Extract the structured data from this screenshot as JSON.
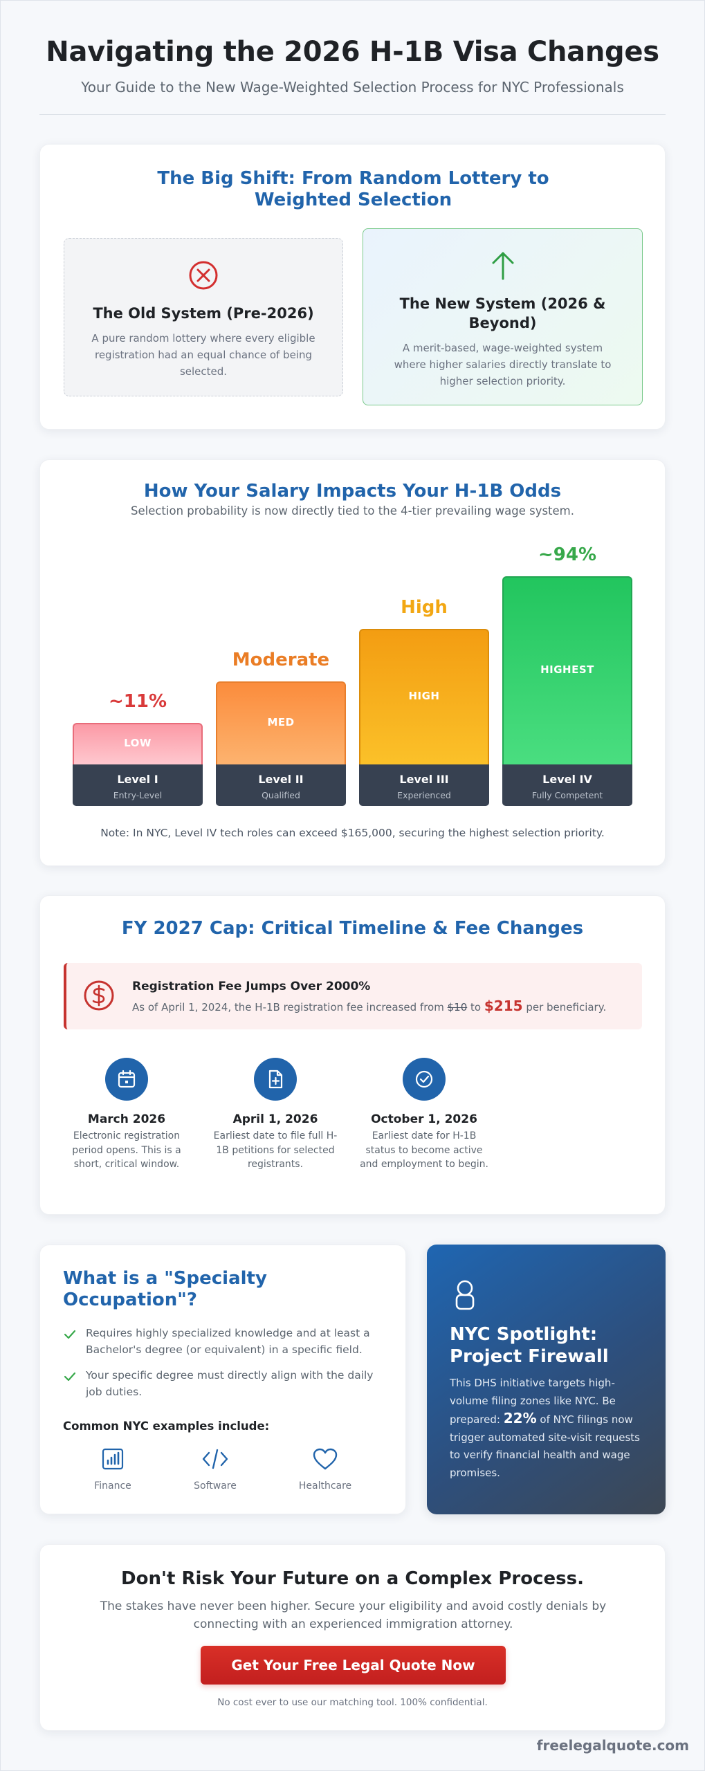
{
  "header": {
    "title": "Navigating the 2026 H-1B Visa Changes",
    "subtitle": "Your Guide to the New Wage-Weighted Selection Process for NYC Professionals"
  },
  "shift": {
    "title": "The Big Shift: From Random Lottery to Weighted Selection",
    "old": {
      "icon": "x-circle-icon",
      "title": "The Old System (Pre-2026)",
      "text": "A pure random lottery where every eligible registration had an equal chance of being selected."
    },
    "new": {
      "icon": "arrow-up-icon",
      "title": "The New System (2026 & Beyond)",
      "text": "A merit-based, wage-weighted system where higher salaries directly translate to higher selection priority."
    }
  },
  "salary": {
    "title": "How Your Salary Impacts Your H-1B Odds",
    "subtitle": "Selection probability is now directly tied to the 4-tier prevailing wage system.",
    "levels": [
      {
        "odds": "~11%",
        "tag": "LOW",
        "level": "Level I",
        "desc": "Entry-Level",
        "color": "#d93a3a",
        "height": 0.22
      },
      {
        "odds": "Moderate",
        "tag": "MED",
        "level": "Level II",
        "desc": "Qualified",
        "color": "#ea7d25",
        "height": 0.44
      },
      {
        "odds": "High",
        "tag": "HIGH",
        "level": "Level III",
        "desc": "Experienced",
        "color": "#f2a713",
        "height": 0.72
      },
      {
        "odds": "~94%",
        "tag": "HIGHEST",
        "level": "Level IV",
        "desc": "Fully Competent",
        "color": "#37a84a",
        "height": 1.0
      }
    ],
    "note": "Note: In NYC, Level IV tech roles can exceed $165,000, securing the highest selection priority."
  },
  "timeline": {
    "title": "FY 2027 Cap: Critical Timeline & Fee Changes",
    "fee": {
      "icon": "dollar-circle-icon",
      "title": "Registration Fee Jumps Over 2000%",
      "text_before": "As of April 1, 2024, the H-1B registration fee increased from",
      "old_fee": "$10",
      "text_mid": "to",
      "new_fee": "$215",
      "text_after": "per beneficiary."
    },
    "items": [
      {
        "icon": "calendar-icon",
        "date": "March 2026",
        "desc": "Electronic registration period opens. This is a short, critical window."
      },
      {
        "icon": "file-plus-icon",
        "date": "April 1, 2026",
        "desc": "Earliest date to file full H-1B petitions for selected registrants."
      },
      {
        "icon": "check-circle-icon",
        "date": "October 1, 2026",
        "desc": "Earliest date for H-1B status to become active and employment to begin."
      }
    ]
  },
  "specialty": {
    "title": "What is a \"Specialty Occupation\"?",
    "requirements": [
      "Requires highly specialized knowledge and at least a Bachelor's degree (or equivalent) in a specific field.",
      "Your specific degree must directly align with the daily job duties."
    ],
    "examples_title": "Common NYC examples include:",
    "examples": [
      {
        "icon": "bar-chart-icon",
        "label": "Finance"
      },
      {
        "icon": "code-icon",
        "label": "Software"
      },
      {
        "icon": "heart-icon",
        "label": "Healthcare"
      }
    ]
  },
  "spotlight": {
    "icon": "shield-icon",
    "title": "NYC Spotlight: Project Firewall",
    "text_before": "This DHS initiative targets high-volume filing zones like NYC. Be prepared:",
    "stat": "22%",
    "text_after": "of NYC filings now trigger automated site-visit requests to verify financial health and wage promises."
  },
  "cta": {
    "title": "Don't Risk Your Future on a Complex Process.",
    "text": "The stakes have never been higher. Secure your eligibility and avoid costly denials by connecting with an experienced immigration attorney.",
    "button": "Get Your Free Legal Quote Now",
    "note": "No cost ever to use our matching tool. 100% confidential."
  },
  "footer": {
    "brand": "freelegalquote.com"
  }
}
